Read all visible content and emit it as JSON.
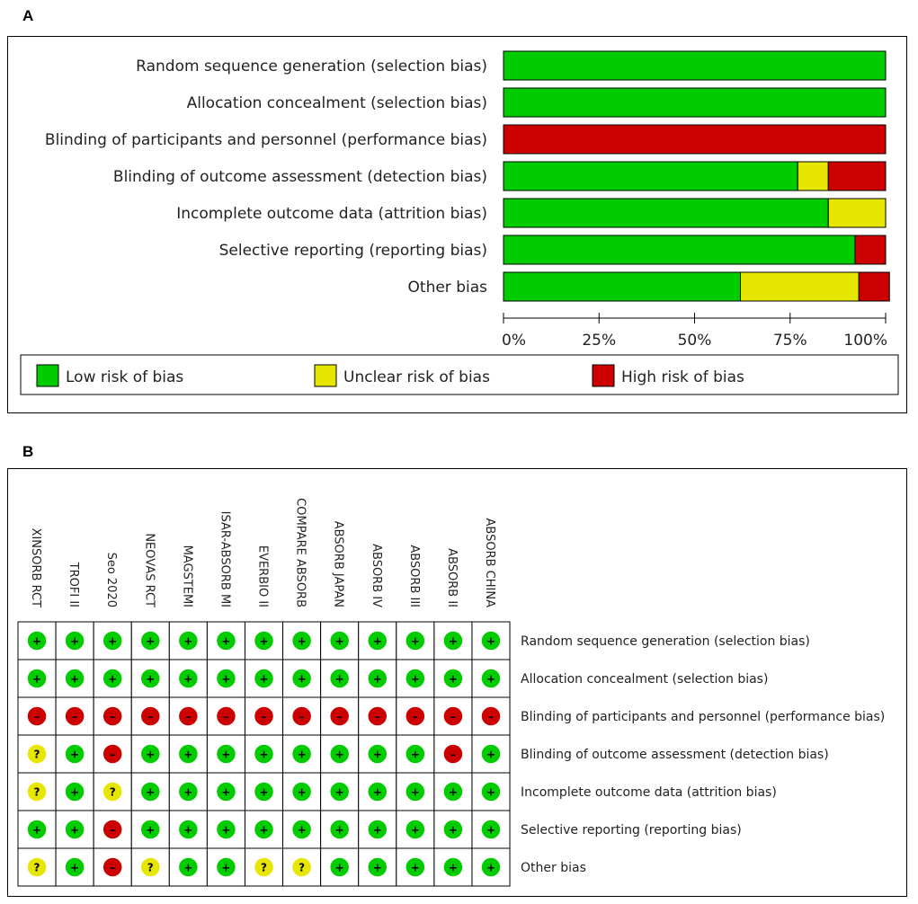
{
  "panels": {
    "a_label": "A",
    "b_label": "B"
  },
  "colors": {
    "low": "#00CC00",
    "unclear": "#E6E600",
    "high": "#CC0000",
    "border": "#000000",
    "text": "#222222"
  },
  "chart_data": [
    {
      "type": "bar",
      "orientation": "horizontal",
      "stacked": true,
      "categories": [
        "Random sequence generation (selection bias)",
        "Allocation concealment (selection bias)",
        "Blinding of participants and personnel (performance bias)",
        "Blinding of outcome assessment (detection bias)",
        "Incomplete outcome data (attrition bias)",
        "Selective reporting (reporting bias)",
        "Other bias"
      ],
      "series": [
        {
          "name": "Low risk of bias",
          "key": "low",
          "values": [
            100,
            100,
            0,
            77,
            85,
            92,
            62
          ]
        },
        {
          "name": "Unclear risk of bias",
          "key": "unclear",
          "values": [
            0,
            0,
            0,
            8,
            15,
            0,
            31
          ]
        },
        {
          "name": "High risk of bias",
          "key": "high",
          "values": [
            0,
            0,
            100,
            15,
            0,
            8,
            8
          ]
        }
      ],
      "xticks": [
        "0%",
        "25%",
        "50%",
        "75%",
        "100%"
      ],
      "xlim": [
        0,
        100
      ],
      "legend": "bottom"
    },
    {
      "type": "table",
      "studies": [
        "XINSORB RCT",
        "TROFI II",
        "Seo 2020",
        "NEOVAS RCT",
        "MAGSTEMI",
        "ISAR-ABSORB MI",
        "EVERBIO II",
        "COMPARE ABSORB",
        "ABSORB JAPAN",
        "ABSORB IV",
        "ABSORB III",
        "ABSORB II",
        "ABSORB CHINA"
      ],
      "domains": [
        "Random sequence generation (selection bias)",
        "Allocation concealment (selection bias)",
        "Blinding of participants and personnel (performance bias)",
        "Blinding of outcome assessment (detection bias)",
        "Incomplete outcome data (attrition bias)",
        "Selective reporting (reporting bias)",
        "Other bias"
      ],
      "judgements": [
        [
          "+",
          "+",
          "+",
          "+",
          "+",
          "+",
          "+",
          "+",
          "+",
          "+",
          "+",
          "+",
          "+"
        ],
        [
          "+",
          "+",
          "+",
          "+",
          "+",
          "+",
          "+",
          "+",
          "+",
          "+",
          "+",
          "+",
          "+"
        ],
        [
          "-",
          "-",
          "-",
          "-",
          "-",
          "-",
          "-",
          "-",
          "-",
          "-",
          "-",
          "-",
          "-"
        ],
        [
          "?",
          "+",
          "-",
          "+",
          "+",
          "+",
          "+",
          "+",
          "+",
          "+",
          "+",
          "-",
          "+"
        ],
        [
          "?",
          "+",
          "?",
          "+",
          "+",
          "+",
          "+",
          "+",
          "+",
          "+",
          "+",
          "+",
          "+"
        ],
        [
          "+",
          "+",
          "-",
          "+",
          "+",
          "+",
          "+",
          "+",
          "+",
          "+",
          "+",
          "+",
          "+"
        ],
        [
          "?",
          "+",
          "-",
          "?",
          "+",
          "+",
          "?",
          "?",
          "+",
          "+",
          "+",
          "+",
          "+"
        ]
      ]
    }
  ]
}
